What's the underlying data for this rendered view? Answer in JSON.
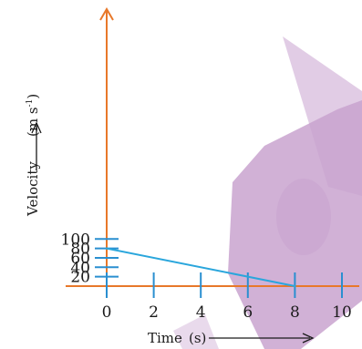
{
  "colors": {
    "axis": "#e8782a",
    "tick": "#2a8fd0",
    "line": "#2aa6dc",
    "watermark": "#c9a3cf",
    "text": "#1a1a1a"
  },
  "chart_data": {
    "type": "line",
    "title": "",
    "xlabel": "Time",
    "xlabel_unit": "(s)",
    "ylabel": "Velocity",
    "ylabel_unit_prefix": "(m s",
    "ylabel_unit_sup": "-1",
    "ylabel_unit_suffix": ")",
    "xlim": [
      0,
      10
    ],
    "ylim": [
      0,
      100
    ],
    "x_ticks": [
      0,
      2,
      4,
      6,
      8,
      10
    ],
    "x_tick_labels": [
      "0",
      "2",
      "4",
      "6",
      "8",
      "10"
    ],
    "y_ticks": [
      20,
      40,
      60,
      80,
      100
    ],
    "y_tick_labels": [
      "20",
      "40",
      "60",
      "80",
      "100"
    ],
    "grid": false,
    "series": [
      {
        "x": [
          0,
          8
        ],
        "y": [
          80,
          0
        ]
      }
    ]
  }
}
